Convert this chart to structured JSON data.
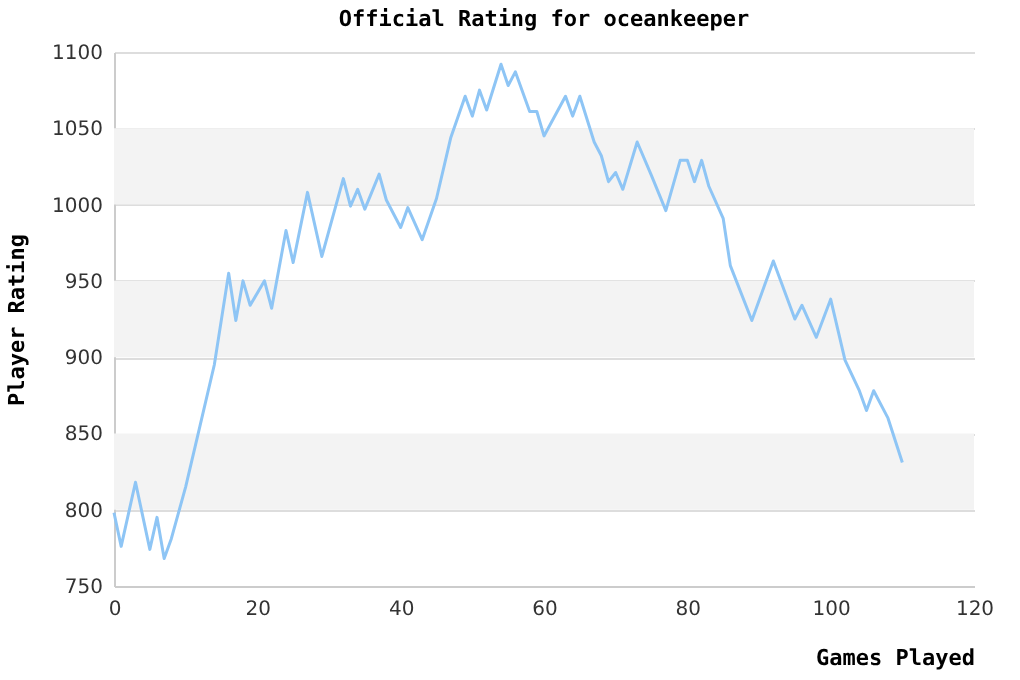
{
  "chart_data": {
    "type": "line",
    "title": "Official Rating for oceankeeper",
    "xlabel": "Games Played",
    "ylabel": "Player Rating",
    "x": [
      0,
      1,
      3,
      5,
      6,
      7,
      8,
      10,
      12,
      14,
      16,
      17,
      18,
      19,
      21,
      22,
      24,
      25,
      27,
      29,
      32,
      33,
      34,
      35,
      37,
      38,
      40,
      41,
      43,
      45,
      47,
      49,
      50,
      51,
      52,
      54,
      55,
      56,
      58,
      59,
      60,
      63,
      64,
      65,
      67,
      68,
      69,
      70,
      71,
      73,
      75,
      77,
      79,
      80,
      81,
      82,
      83,
      85,
      86,
      89,
      92,
      95,
      96,
      98,
      100,
      102,
      104,
      105,
      106,
      108,
      110
    ],
    "series": [
      {
        "color": "#8ec5f5",
        "values": [
          798,
          776,
          818,
          774,
          795,
          768,
          781,
          815,
          855,
          895,
          955,
          924,
          950,
          934,
          950,
          932,
          983,
          962,
          1008,
          966,
          1017,
          999,
          1010,
          997,
          1020,
          1003,
          985,
          998,
          977,
          1004,
          1044,
          1071,
          1058,
          1075,
          1062,
          1092,
          1078,
          1087,
          1061,
          1061,
          1045,
          1071,
          1058,
          1071,
          1041,
          1032,
          1015,
          1021,
          1010,
          1041,
          1019,
          996,
          1029,
          1029,
          1015,
          1029,
          1012,
          991,
          960,
          924,
          963,
          925,
          934,
          913,
          938,
          898,
          878,
          865,
          878,
          860,
          831
        ]
      }
    ],
    "xlim": [
      0,
      120
    ],
    "xticks": [
      0,
      20,
      40,
      60,
      80,
      100,
      120
    ],
    "ylim": [
      750,
      1100
    ],
    "yticks": [
      750,
      800,
      850,
      900,
      950,
      1000,
      1050,
      1100
    ],
    "grid": "y",
    "marker": "none",
    "line_style": "solid"
  }
}
